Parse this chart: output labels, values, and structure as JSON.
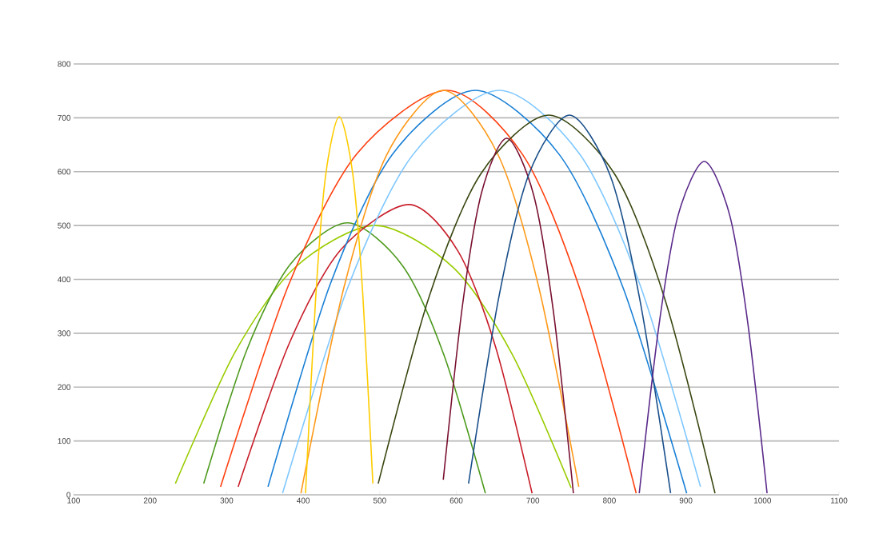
{
  "chart_data": {
    "type": "line",
    "xlim": [
      100,
      1100
    ],
    "ylim": [
      0,
      800
    ],
    "xticks": [
      100,
      200,
      300,
      400,
      500,
      600,
      700,
      800,
      900,
      1000,
      1100
    ],
    "yticks": [
      0,
      100,
      200,
      300,
      400,
      500,
      600,
      700,
      800
    ],
    "grid": "y",
    "marker": "none",
    "line_style": "solid",
    "series": [
      {
        "color": "#99cc00",
        "x": [
          233,
          311,
          390,
          494,
          596,
          673,
          750
        ],
        "values": [
          21,
          265,
          423,
          500,
          422,
          261,
          13
        ]
      },
      {
        "color": "#4e9a1e",
        "x": [
          270,
          326,
          383,
          458,
          530,
          584,
          638
        ],
        "values": [
          21,
          268,
          428,
          505,
          425,
          259,
          3
        ]
      },
      {
        "color": "#ff4010",
        "x": [
          292,
          381,
          470,
          588,
          687,
          761,
          835
        ],
        "values": [
          15,
          390,
          633,
          751,
          631,
          384,
          3
        ]
      },
      {
        "color": "#c81e2a",
        "x": [
          315,
          382,
          449,
          538,
          602,
          651,
          699
        ],
        "values": [
          15,
          282,
          455,
          539,
          453,
          276,
          3
        ]
      },
      {
        "color": "#1a80d6",
        "x": [
          354,
          435,
          517,
          625,
          735,
          818,
          901
        ],
        "values": [
          15,
          390,
          633,
          751,
          631,
          384,
          3
        ]
      },
      {
        "color": "#80c8ff",
        "x": [
          373,
          458,
          543,
          656,
          761,
          840,
          919
        ],
        "values": [
          3,
          384,
          631,
          751,
          633,
          390,
          15
        ]
      },
      {
        "color": "#ff9a1a",
        "x": [
          397,
          453,
          509,
          583,
          654,
          707,
          760
        ],
        "values": [
          3,
          384,
          631,
          751,
          633,
          390,
          15
        ]
      },
      {
        "color": "#ffcc00",
        "x": [
          403,
          416,
          429,
          447,
          465,
          478,
          491
        ],
        "values": [
          3,
          359,
          590,
          702,
          593,
          368,
          21
        ]
      },
      {
        "color": "#3a4812",
        "x": [
          498,
          565,
          632,
          721,
          808,
          873,
          938
        ],
        "values": [
          21,
          370,
          596,
          705,
          593,
          361,
          3
        ]
      },
      {
        "color": "#7a1232",
        "x": [
          583,
          608,
          633,
          666,
          701,
          727,
          753
        ],
        "values": [
          28,
          351,
          561,
          662,
          557,
          339,
          3
        ]
      },
      {
        "color": "#1a4f8a",
        "x": [
          616,
          656,
          695,
          748,
          801,
          840,
          880
        ],
        "values": [
          21,
          370,
          596,
          705,
          593,
          361,
          3
        ]
      },
      {
        "color": "#5a2a8a",
        "x": [
          839,
          865,
          890,
          924,
          957,
          981,
          1006
        ],
        "values": [
          3,
          317,
          520,
          619,
          520,
          317,
          3
        ]
      }
    ]
  }
}
